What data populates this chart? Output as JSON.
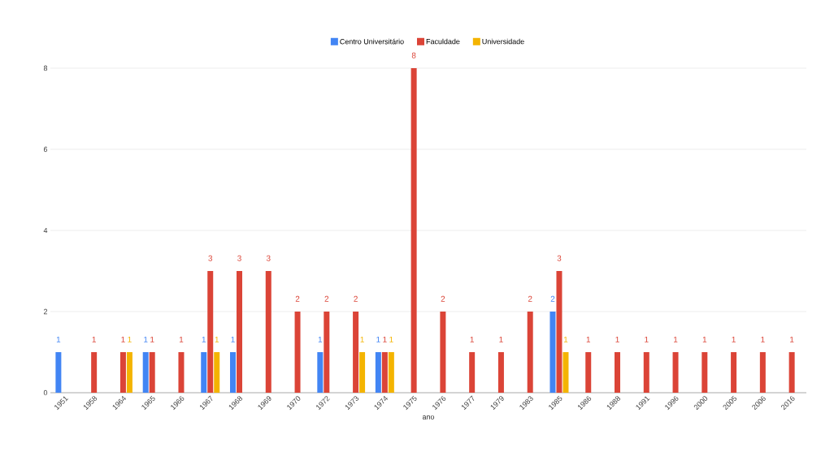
{
  "chart_data": {
    "type": "bar",
    "xlabel": "ano",
    "categories": [
      "1951",
      "1958",
      "1964",
      "1965",
      "1966",
      "1967",
      "1968",
      "1969",
      "1970",
      "1972",
      "1973",
      "1974",
      "1975",
      "1976",
      "1977",
      "1979",
      "1983",
      "1985",
      "1986",
      "1988",
      "1991",
      "1996",
      "2000",
      "2005",
      "2006",
      "2016"
    ],
    "series": [
      {
        "name": "Centro Universitário",
        "color": "#4285f4",
        "values": [
          1,
          null,
          null,
          1,
          null,
          1,
          1,
          null,
          null,
          1,
          null,
          1,
          null,
          null,
          null,
          null,
          null,
          2,
          null,
          null,
          null,
          null,
          null,
          null,
          null,
          null
        ]
      },
      {
        "name": "Faculdade",
        "color": "#db4437",
        "values": [
          null,
          1,
          1,
          1,
          1,
          3,
          3,
          3,
          2,
          2,
          2,
          1,
          8,
          2,
          1,
          1,
          2,
          3,
          1,
          1,
          1,
          1,
          1,
          1,
          1,
          1
        ]
      },
      {
        "name": "Universidade",
        "color": "#f4b400",
        "values": [
          null,
          null,
          1,
          null,
          null,
          1,
          null,
          null,
          null,
          null,
          1,
          1,
          null,
          null,
          null,
          null,
          null,
          1,
          null,
          null,
          null,
          null,
          null,
          null,
          null,
          null
        ]
      }
    ],
    "ylim": [
      0,
      8
    ],
    "yticks": [
      0,
      2,
      4,
      6,
      8
    ],
    "grid": "y",
    "legend": "top",
    "data_labels": true
  }
}
